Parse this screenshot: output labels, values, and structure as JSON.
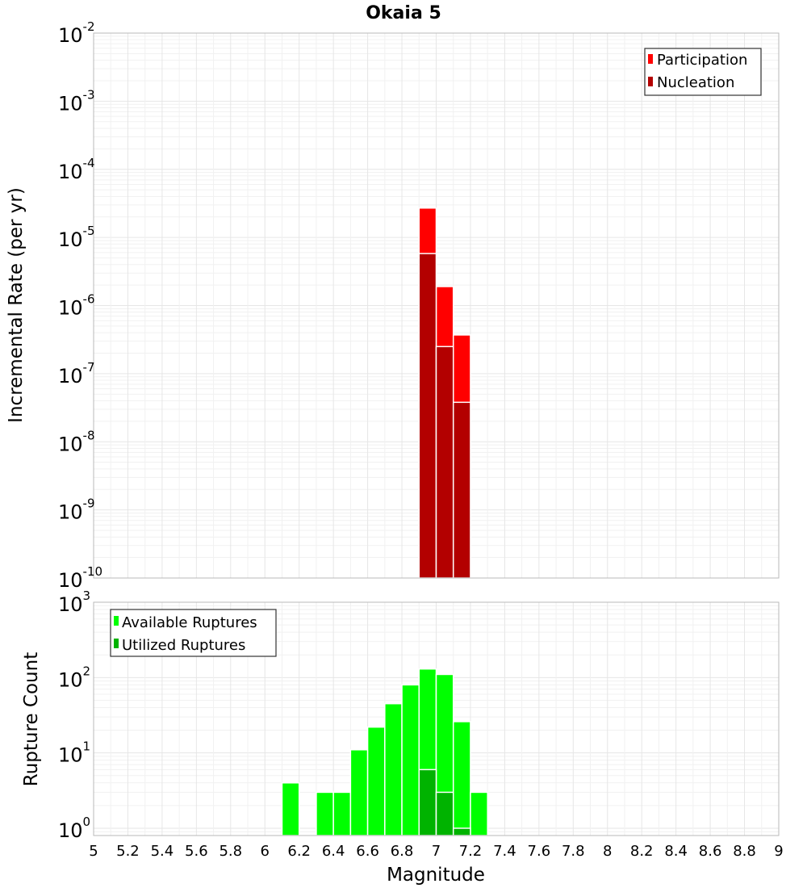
{
  "title": "Okaia 5",
  "colors": {
    "participation": "#ff0000",
    "nucleation": "#b30000",
    "available": "#00ff00",
    "utilized": "#00b300",
    "grid": "#e6e6e6",
    "frame": "#b9b9b9"
  },
  "chart_data": [
    {
      "type": "bar",
      "panel": "top",
      "ylabel": "Incremental Rate (per yr)",
      "yscale": "log",
      "ylim": [
        1e-10,
        0.01
      ],
      "xlim": [
        5,
        9
      ],
      "grid": true,
      "legend_position": "top-right",
      "yticks": [
        {
          "base": "10",
          "exp": "-10"
        },
        {
          "base": "10",
          "exp": "-9"
        },
        {
          "base": "10",
          "exp": "-8"
        },
        {
          "base": "10",
          "exp": "-7"
        },
        {
          "base": "10",
          "exp": "-6"
        },
        {
          "base": "10",
          "exp": "-5"
        },
        {
          "base": "10",
          "exp": "-4"
        },
        {
          "base": "10",
          "exp": "-3"
        },
        {
          "base": "10",
          "exp": "-2"
        }
      ],
      "series": [
        {
          "name": "Participation",
          "color_key": "participation",
          "x": [
            6.95,
            7.05,
            7.15
          ],
          "values": [
            2.7e-05,
            1.9e-06,
            3.7e-07
          ]
        },
        {
          "name": "Nucleation",
          "color_key": "nucleation",
          "x": [
            6.95,
            7.05,
            7.15
          ],
          "values": [
            5.8e-06,
            2.5e-07,
            3.8e-08
          ]
        }
      ]
    },
    {
      "type": "bar",
      "panel": "bottom",
      "xlabel": "Magnitude",
      "ylabel": "Rupture Count",
      "yscale": "log",
      "ylim": [
        0.8,
        1000
      ],
      "xlim": [
        5,
        9
      ],
      "grid": true,
      "legend_position": "top-left",
      "yticks": [
        {
          "base": "10",
          "exp": "0"
        },
        {
          "base": "10",
          "exp": "1"
        },
        {
          "base": "10",
          "exp": "2"
        },
        {
          "base": "10",
          "exp": "3"
        }
      ],
      "xticks": [
        "5",
        "5.2",
        "5.4",
        "5.6",
        "5.8",
        "6",
        "6.2",
        "6.4",
        "6.6",
        "6.8",
        "7",
        "7.2",
        "7.4",
        "7.6",
        "7.8",
        "8",
        "8.2",
        "8.4",
        "8.6",
        "8.8",
        "9"
      ],
      "series": [
        {
          "name": "Available Ruptures",
          "color_key": "available",
          "x": [
            6.15,
            6.35,
            6.45,
            6.55,
            6.65,
            6.75,
            6.85,
            6.95,
            7.05,
            7.15,
            7.25
          ],
          "values": [
            4,
            3,
            3,
            11,
            22,
            45,
            80,
            130,
            110,
            26,
            3
          ]
        },
        {
          "name": "Utilized Ruptures",
          "color_key": "utilized",
          "x": [
            6.95,
            7.05,
            7.15
          ],
          "values": [
            6,
            3,
            1
          ]
        }
      ]
    }
  ]
}
